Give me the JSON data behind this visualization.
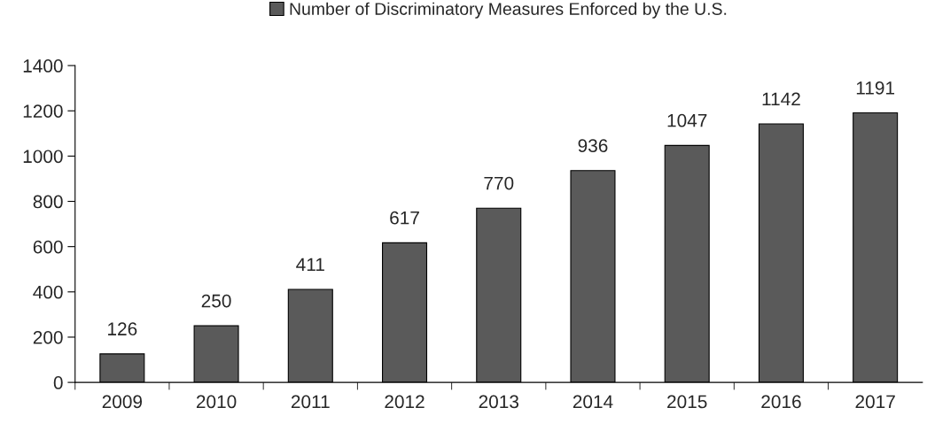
{
  "chart_data": {
    "type": "bar",
    "categories": [
      "2009",
      "2010",
      "2011",
      "2012",
      "2013",
      "2014",
      "2015",
      "2016",
      "2017"
    ],
    "series": [
      {
        "name": "Number of Discriminatory Measures Enforced by the U.S.",
        "color": "#5a5a5a",
        "values": [
          126,
          250,
          411,
          617,
          770,
          936,
          1047,
          1142,
          1191
        ]
      }
    ],
    "ylim": [
      0,
      1400
    ],
    "yticks": [
      0,
      200,
      400,
      600,
      800,
      1000,
      1200,
      1400
    ],
    "data_labels": true,
    "legend": "top",
    "grid": false
  }
}
